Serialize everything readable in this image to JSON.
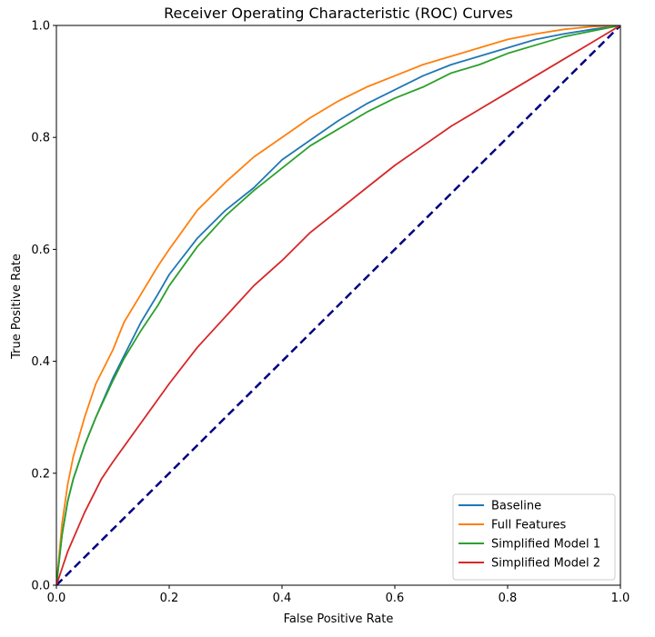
{
  "chart_data": {
    "type": "line",
    "title": "Receiver Operating Characteristic (ROC) Curves",
    "xlabel": "False Positive Rate",
    "ylabel": "True Positive Rate",
    "xlim": [
      0.0,
      1.0
    ],
    "ylim": [
      0.0,
      1.0
    ],
    "xticks": [
      "0.0",
      "0.2",
      "0.4",
      "0.6",
      "0.8",
      "1.0"
    ],
    "yticks": [
      "0.0",
      "0.2",
      "0.4",
      "0.6",
      "0.8",
      "1.0"
    ],
    "grid": false,
    "legend_position": "bottom-right",
    "series": [
      {
        "name": "Baseline",
        "color": "#1f77b4",
        "points": [
          [
            0.0,
            0.0
          ],
          [
            0.01,
            0.09
          ],
          [
            0.02,
            0.15
          ],
          [
            0.03,
            0.19
          ],
          [
            0.05,
            0.25
          ],
          [
            0.07,
            0.3
          ],
          [
            0.1,
            0.37
          ],
          [
            0.12,
            0.41
          ],
          [
            0.15,
            0.47
          ],
          [
            0.18,
            0.52
          ],
          [
            0.2,
            0.555
          ],
          [
            0.25,
            0.62
          ],
          [
            0.3,
            0.67
          ],
          [
            0.35,
            0.71
          ],
          [
            0.4,
            0.76
          ],
          [
            0.45,
            0.795
          ],
          [
            0.5,
            0.83
          ],
          [
            0.55,
            0.86
          ],
          [
            0.6,
            0.885
          ],
          [
            0.65,
            0.91
          ],
          [
            0.7,
            0.93
          ],
          [
            0.75,
            0.945
          ],
          [
            0.8,
            0.96
          ],
          [
            0.85,
            0.975
          ],
          [
            0.9,
            0.985
          ],
          [
            0.95,
            0.993
          ],
          [
            1.0,
            1.0
          ]
        ]
      },
      {
        "name": "Full Features",
        "color": "#ff7f0e",
        "points": [
          [
            0.0,
            0.0
          ],
          [
            0.01,
            0.11
          ],
          [
            0.02,
            0.18
          ],
          [
            0.03,
            0.23
          ],
          [
            0.05,
            0.3
          ],
          [
            0.07,
            0.36
          ],
          [
            0.1,
            0.42
          ],
          [
            0.12,
            0.47
          ],
          [
            0.15,
            0.52
          ],
          [
            0.18,
            0.57
          ],
          [
            0.2,
            0.6
          ],
          [
            0.25,
            0.67
          ],
          [
            0.3,
            0.72
          ],
          [
            0.35,
            0.765
          ],
          [
            0.4,
            0.8
          ],
          [
            0.45,
            0.835
          ],
          [
            0.5,
            0.865
          ],
          [
            0.55,
            0.89
          ],
          [
            0.6,
            0.91
          ],
          [
            0.65,
            0.93
          ],
          [
            0.7,
            0.945
          ],
          [
            0.75,
            0.96
          ],
          [
            0.8,
            0.975
          ],
          [
            0.85,
            0.985
          ],
          [
            0.9,
            0.993
          ],
          [
            0.95,
            0.998
          ],
          [
            1.0,
            1.0
          ]
        ]
      },
      {
        "name": "Simplified Model 1",
        "color": "#2ca02c",
        "points": [
          [
            0.0,
            0.0
          ],
          [
            0.01,
            0.09
          ],
          [
            0.02,
            0.15
          ],
          [
            0.03,
            0.19
          ],
          [
            0.05,
            0.25
          ],
          [
            0.07,
            0.3
          ],
          [
            0.1,
            0.365
          ],
          [
            0.12,
            0.405
          ],
          [
            0.15,
            0.455
          ],
          [
            0.18,
            0.5
          ],
          [
            0.2,
            0.535
          ],
          [
            0.25,
            0.605
          ],
          [
            0.3,
            0.66
          ],
          [
            0.35,
            0.705
          ],
          [
            0.4,
            0.745
          ],
          [
            0.45,
            0.785
          ],
          [
            0.5,
            0.815
          ],
          [
            0.55,
            0.845
          ],
          [
            0.6,
            0.87
          ],
          [
            0.65,
            0.89
          ],
          [
            0.7,
            0.915
          ],
          [
            0.75,
            0.93
          ],
          [
            0.8,
            0.95
          ],
          [
            0.85,
            0.965
          ],
          [
            0.9,
            0.98
          ],
          [
            0.95,
            0.99
          ],
          [
            1.0,
            1.0
          ]
        ]
      },
      {
        "name": "Simplified Model 2",
        "color": "#d62728",
        "points": [
          [
            0.0,
            0.0
          ],
          [
            0.02,
            0.06
          ],
          [
            0.05,
            0.13
          ],
          [
            0.08,
            0.19
          ],
          [
            0.1,
            0.22
          ],
          [
            0.15,
            0.29
          ],
          [
            0.2,
            0.36
          ],
          [
            0.25,
            0.425
          ],
          [
            0.3,
            0.48
          ],
          [
            0.35,
            0.535
          ],
          [
            0.4,
            0.58
          ],
          [
            0.45,
            0.63
          ],
          [
            0.5,
            0.67
          ],
          [
            0.55,
            0.71
          ],
          [
            0.6,
            0.75
          ],
          [
            0.65,
            0.785
          ],
          [
            0.7,
            0.82
          ],
          [
            0.75,
            0.85
          ],
          [
            0.8,
            0.88
          ],
          [
            0.85,
            0.91
          ],
          [
            0.9,
            0.94
          ],
          [
            0.95,
            0.97
          ],
          [
            1.0,
            1.0
          ]
        ]
      },
      {
        "color": "#000080",
        "dashed": true,
        "points": [
          [
            0.0,
            0.0
          ],
          [
            1.0,
            1.0
          ]
        ]
      }
    ]
  }
}
